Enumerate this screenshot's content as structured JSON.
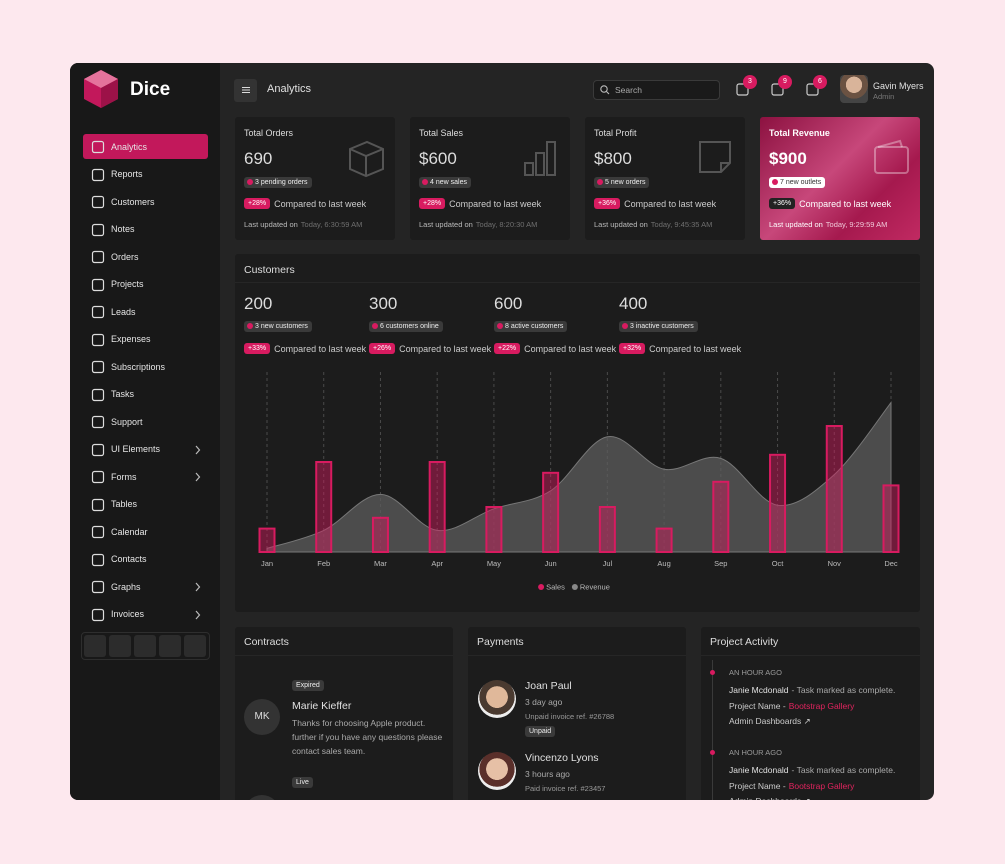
{
  "brand": "Dice",
  "nav": [
    {
      "label": "Analytics",
      "active": true
    },
    {
      "label": "Reports"
    },
    {
      "label": "Customers"
    },
    {
      "label": "Notes"
    },
    {
      "label": "Orders"
    },
    {
      "label": "Projects"
    },
    {
      "label": "Leads"
    },
    {
      "label": "Expenses"
    },
    {
      "label": "Subscriptions"
    },
    {
      "label": "Tasks"
    },
    {
      "label": "Support"
    },
    {
      "label": "UI Elements",
      "submenu": true
    },
    {
      "label": "Forms",
      "submenu": true
    },
    {
      "label": "Tables"
    },
    {
      "label": "Calendar"
    },
    {
      "label": "Contacts"
    },
    {
      "label": "Graphs",
      "submenu": true
    },
    {
      "label": "Invoices",
      "submenu": true
    }
  ],
  "header": {
    "title": "Analytics",
    "search": "Search",
    "alerts": [
      3,
      9,
      6
    ],
    "user": {
      "name": "Gavin Myers",
      "role": "Admin"
    }
  },
  "stats": [
    {
      "title": "Total Orders",
      "value": "690",
      "badge": "3 pending orders",
      "change": "+28%",
      "change_text": "Compared to last week",
      "updated_label": "Last updated on",
      "updated": "Today, 6:30:59 AM"
    },
    {
      "title": "Total Sales",
      "value": "$600",
      "badge": "4 new sales",
      "change": "+28%",
      "change_text": "Compared to last week",
      "updated_label": "Last updated on",
      "updated": "Today, 8:20:30 AM"
    },
    {
      "title": "Total Profit",
      "value": "$800",
      "badge": "5 new orders",
      "change": "+36%",
      "change_text": "Compared to last week",
      "updated_label": "Last updated on",
      "updated": "Today, 9:45:35 AM"
    },
    {
      "title": "Total Revenue",
      "value": "$900",
      "badge": "7 new outlets",
      "change": "+36%",
      "change_text": "Compared to last week",
      "updated_label": "Last updated on",
      "updated": "Today, 9:29:59 AM",
      "highlight": true
    }
  ],
  "customers": {
    "title": "Customers",
    "stats": [
      {
        "value": "200",
        "badge": "3 new customers",
        "change": "+33%",
        "change_text": "Compared to last week"
      },
      {
        "value": "300",
        "badge": "6 customers online",
        "change": "+26%",
        "change_text": "Compared to last week"
      },
      {
        "value": "600",
        "badge": "8 active customers",
        "change": "+22%",
        "change_text": "Compared to last week"
      },
      {
        "value": "400",
        "badge": "3 inactive customers",
        "change": "+32%",
        "change_text": "Compared to last week"
      }
    ]
  },
  "chart_data": {
    "type": "bar",
    "categories": [
      "Jan",
      "Feb",
      "Mar",
      "Apr",
      "May",
      "Jun",
      "Jul",
      "Aug",
      "Sep",
      "Oct",
      "Nov",
      "Dec"
    ],
    "series": [
      {
        "name": "Sales",
        "type": "bar",
        "color": "#d81b60",
        "values": [
          13,
          50,
          19,
          50,
          25,
          44,
          25,
          13,
          39,
          54,
          70,
          37
        ]
      },
      {
        "name": "Revenue",
        "type": "area",
        "color": "#5c5c5c",
        "values": [
          2,
          12,
          32,
          12,
          24,
          34,
          64,
          46,
          52,
          26,
          43,
          83
        ]
      }
    ],
    "ylim": [
      0,
      100
    ],
    "grid": true,
    "legend": "bottom"
  },
  "contracts": {
    "title": "Contracts",
    "items": [
      {
        "status": "Expired",
        "initials": "MK",
        "name": "Marie Kieffer",
        "text": "Thanks for choosing Apple product. further if you have any questions please contact sales team."
      },
      {
        "status": "Live"
      }
    ]
  },
  "payments": {
    "title": "Payments",
    "items": [
      {
        "name": "Joan Paul",
        "time": "3 day ago",
        "ref": "Unpaid invoice ref. #26788",
        "status": "Unpaid"
      },
      {
        "name": "Vincenzo Lyons",
        "time": "3 hours ago",
        "ref": "Paid invoice ref. #23457"
      }
    ]
  },
  "activity": {
    "title": "Project Activity",
    "items": [
      {
        "time": "AN HOUR AGO",
        "user": "Janie Mcdonald",
        "action": "- Task marked as complete.",
        "project_label": "Project Name -",
        "project": "Bootstrap Gallery",
        "link": "Admin Dashboards ↗"
      },
      {
        "time": "AN HOUR AGO",
        "user": "Janie Mcdonald",
        "action": "- Task marked as complete.",
        "project_label": "Project Name -",
        "project": "Bootstrap Gallery",
        "link": "Admin Dashboards ↗"
      }
    ]
  }
}
